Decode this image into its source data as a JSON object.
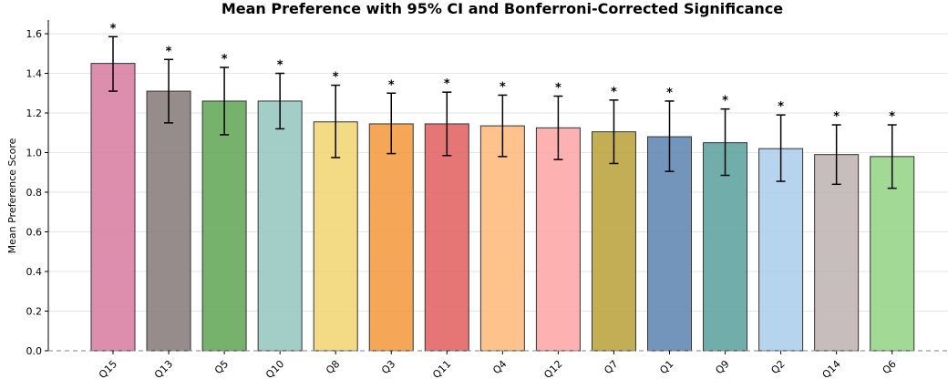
{
  "chart_data": {
    "type": "bar",
    "title": "Mean Preference with 95% CI and Bonferroni-Corrected Significance",
    "xlabel": "",
    "ylabel": "Mean Preference Score",
    "ylim": [
      0,
      1.65
    ],
    "yticks": [
      "0.0",
      "0.2",
      "0.4",
      "0.6",
      "0.8",
      "1.0",
      "1.2",
      "1.4",
      "1.6"
    ],
    "grid": true,
    "categories": [
      "Q15",
      "Q13",
      "Q5",
      "Q10",
      "Q8",
      "Q3",
      "Q11",
      "Q4",
      "Q12",
      "Q7",
      "Q1",
      "Q9",
      "Q2",
      "Q14",
      "Q6"
    ],
    "values": [
      1.45,
      1.31,
      1.26,
      1.26,
      1.155,
      1.145,
      1.145,
      1.135,
      1.125,
      1.105,
      1.08,
      1.05,
      1.02,
      0.99,
      0.98
    ],
    "ci_lower": [
      1.31,
      1.15,
      1.09,
      1.12,
      0.975,
      0.995,
      0.985,
      0.98,
      0.965,
      0.945,
      0.905,
      0.885,
      0.855,
      0.84,
      0.82
    ],
    "ci_upper": [
      1.585,
      1.47,
      1.43,
      1.4,
      1.34,
      1.3,
      1.305,
      1.29,
      1.285,
      1.265,
      1.26,
      1.22,
      1.19,
      1.14,
      1.14
    ],
    "significance": [
      "*",
      "*",
      "*",
      "*",
      "*",
      "*",
      "*",
      "*",
      "*",
      "*",
      "*",
      "*",
      "*",
      "*",
      "*"
    ],
    "colors": [
      "#d77a9f",
      "#857878",
      "#5fa452",
      "#93c5bd",
      "#f1d46e",
      "#f39639",
      "#e25e5e",
      "#feb978",
      "#fea3a3",
      "#b9a037",
      "#5b82b0",
      "#589f9c",
      "#a9cceb",
      "#bcb1b0",
      "#92d283"
    ]
  }
}
